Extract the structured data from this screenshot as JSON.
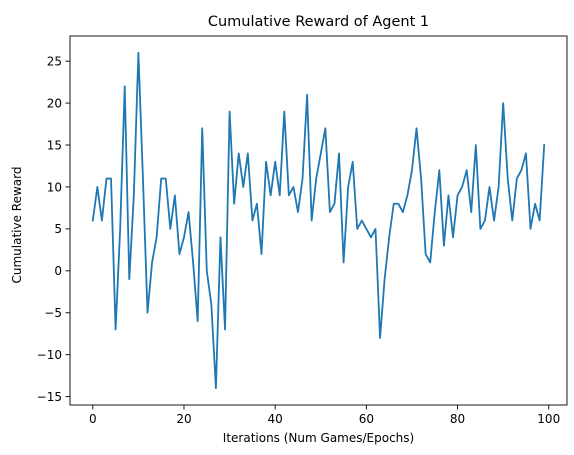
{
  "chart_data": {
    "type": "line",
    "title": "Cumulative Reward of Agent 1",
    "xlabel": "Iterations (Num Games/Epochs)",
    "ylabel": "Cumulative Reward",
    "xlim": [
      -5,
      104
    ],
    "ylim": [
      -16,
      28
    ],
    "xticks": [
      0,
      20,
      40,
      60,
      80,
      100
    ],
    "yticks": [
      -15,
      -10,
      -5,
      0,
      5,
      10,
      15,
      20,
      25
    ],
    "grid": false,
    "legend": "none",
    "series": [
      {
        "color": "#1f77b4",
        "x": [
          0,
          1,
          2,
          3,
          4,
          5,
          6,
          7,
          8,
          9,
          10,
          11,
          12,
          13,
          14,
          15,
          16,
          17,
          18,
          19,
          20,
          21,
          22,
          23,
          24,
          25,
          26,
          27,
          28,
          29,
          30,
          31,
          32,
          33,
          34,
          35,
          36,
          37,
          38,
          39,
          40,
          41,
          42,
          43,
          44,
          45,
          46,
          47,
          48,
          49,
          50,
          51,
          52,
          53,
          54,
          55,
          56,
          57,
          58,
          59,
          60,
          61,
          62,
          63,
          64,
          65,
          66,
          67,
          68,
          69,
          70,
          71,
          72,
          73,
          74,
          75,
          76,
          77,
          78,
          79,
          80,
          81,
          82,
          83,
          84,
          85,
          86,
          87,
          88,
          89,
          90,
          91,
          92,
          93,
          94,
          95,
          96,
          97,
          98,
          99
        ],
        "values": [
          6,
          10,
          6,
          11,
          11,
          -7,
          5,
          22,
          -1,
          9,
          26,
          11,
          -5,
          1,
          4,
          11,
          11,
          5,
          9,
          2,
          4,
          7,
          1,
          -6,
          17,
          0,
          -4,
          -14,
          4,
          -7,
          19,
          8,
          14,
          10,
          14,
          6,
          8,
          2,
          13,
          9,
          13,
          9,
          19,
          9,
          10,
          7,
          11,
          21,
          6,
          11,
          14,
          17,
          7,
          8,
          14,
          1,
          10,
          13,
          5,
          6,
          5,
          4,
          5,
          -8,
          -1,
          4,
          8,
          8,
          7,
          9,
          12,
          17,
          11,
          2,
          1,
          7,
          12,
          3,
          9,
          4,
          9,
          10,
          12,
          7,
          15,
          5,
          6,
          10,
          6,
          10,
          20,
          11,
          6,
          11,
          12,
          14,
          5,
          8,
          6,
          15
        ]
      }
    ]
  }
}
